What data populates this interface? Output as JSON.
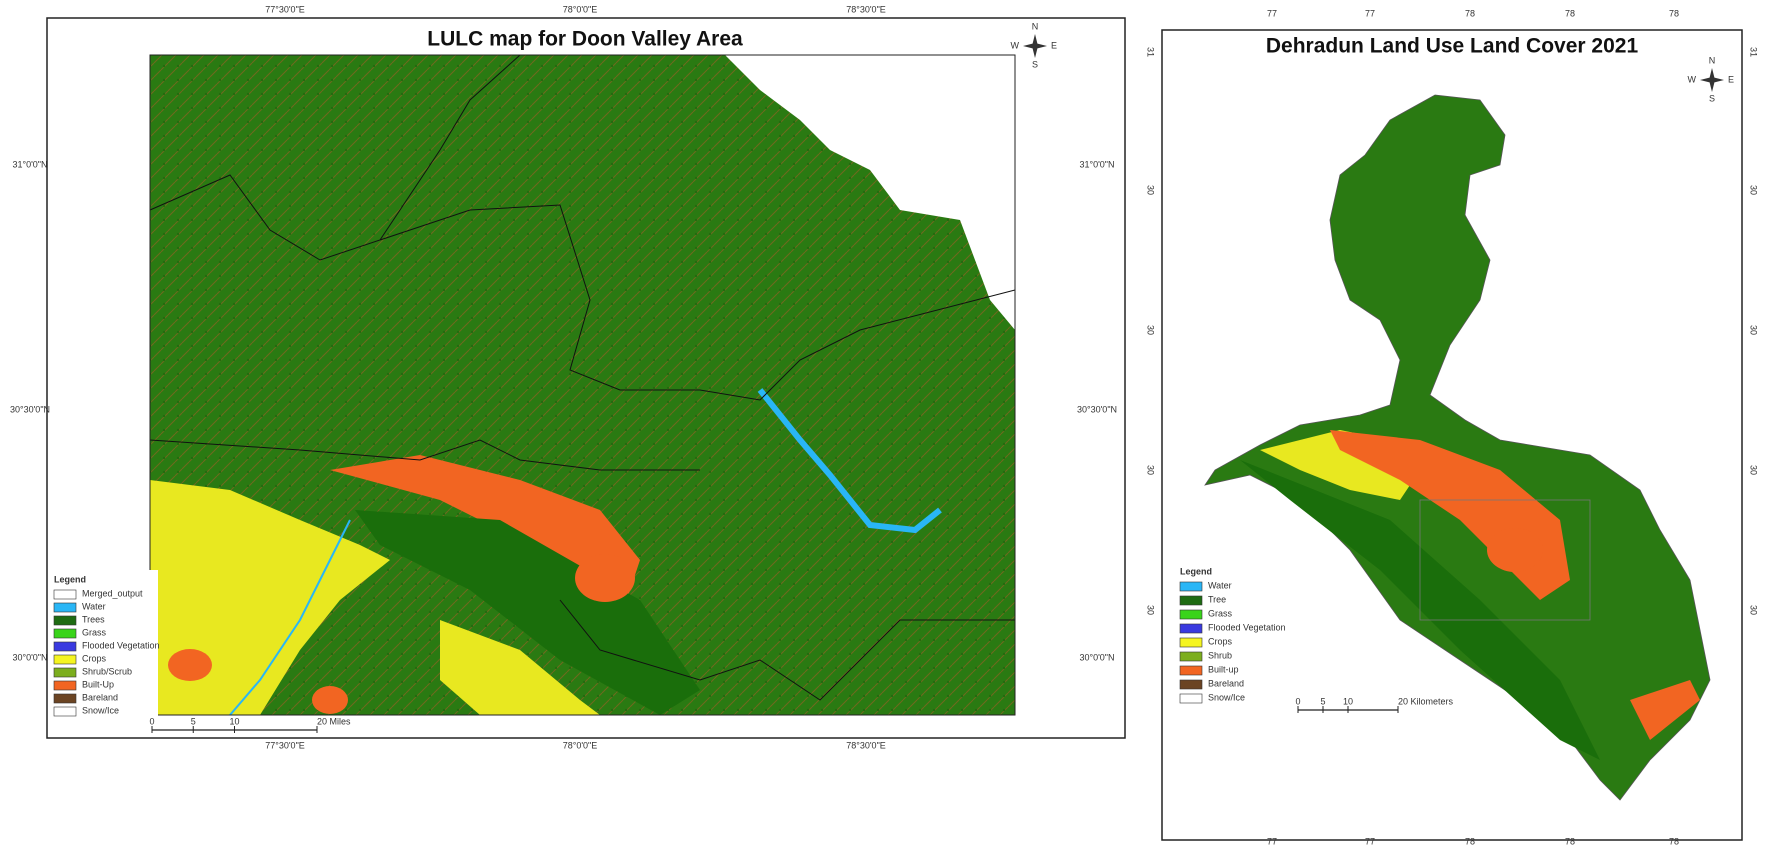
{
  "maps": [
    {
      "title": "LULC map for Doon Valley Area",
      "top_labels": [
        "77°30'0\"E",
        "78°0'0\"E",
        "78°30'0\"E"
      ],
      "bottom_labels": [
        "77°30'0\"E",
        "78°0'0\"E",
        "78°30'0\"E"
      ],
      "left_labels": [
        "31°0'0\"N",
        "30°30'0\"N",
        "30°0'0\"N"
      ],
      "right_labels": [
        "31°0'0\"N",
        "30°30'0\"N",
        "30°0'0\"N"
      ],
      "compass": {
        "n": "N",
        "w": "W",
        "e": "E",
        "s": "S"
      },
      "legend": {
        "title": "Legend",
        "items": [
          {
            "label": "Merged_output",
            "color": "#ffffff"
          },
          {
            "label": "Water",
            "color": "#29b6f6"
          },
          {
            "label": "Trees",
            "color": "#1e6b12"
          },
          {
            "label": "Grass",
            "color": "#39d41a"
          },
          {
            "label": "Flooded Vegetation",
            "color": "#3a3ae0"
          },
          {
            "label": "Crops",
            "color": "#f5f520"
          },
          {
            "label": "Shrub/Scrub",
            "color": "#7cae1e"
          },
          {
            "label": "Built-Up",
            "color": "#f26522"
          },
          {
            "label": "Bareland",
            "color": "#6b4423"
          },
          {
            "label": "Snow/Ice",
            "color": "#ffffff"
          }
        ]
      },
      "scale": [
        "0",
        "5",
        "10",
        "20 Miles"
      ]
    },
    {
      "title": "Dehradun Land Use Land Cover 2021",
      "top_labels": [
        "77",
        "77",
        "78",
        "78",
        "78"
      ],
      "bottom_labels": [
        "77",
        "77",
        "78",
        "78",
        "78"
      ],
      "left_labels": [
        "31",
        "30",
        "30",
        "30",
        "30"
      ],
      "right_labels": [
        "31",
        "30",
        "30",
        "30",
        "30"
      ],
      "compass": {
        "n": "N",
        "w": "W",
        "e": "E",
        "s": "S"
      },
      "legend": {
        "title": "Legend",
        "items": [
          {
            "label": "Water",
            "color": "#29b6f6"
          },
          {
            "label": "Tree",
            "color": "#1e6b12"
          },
          {
            "label": "Grass",
            "color": "#39d41a"
          },
          {
            "label": "Flooded Vegetation",
            "color": "#3a3ae0"
          },
          {
            "label": "Crops",
            "color": "#f5f520"
          },
          {
            "label": "Shrub",
            "color": "#7cae1e"
          },
          {
            "label": "Built-up",
            "color": "#f26522"
          },
          {
            "label": "Bareland",
            "color": "#6b4423"
          },
          {
            "label": "Snow/Ice",
            "color": "#ffffff"
          }
        ]
      },
      "scale": [
        "0",
        "5",
        "10",
        "20 Kilometers"
      ]
    }
  ]
}
